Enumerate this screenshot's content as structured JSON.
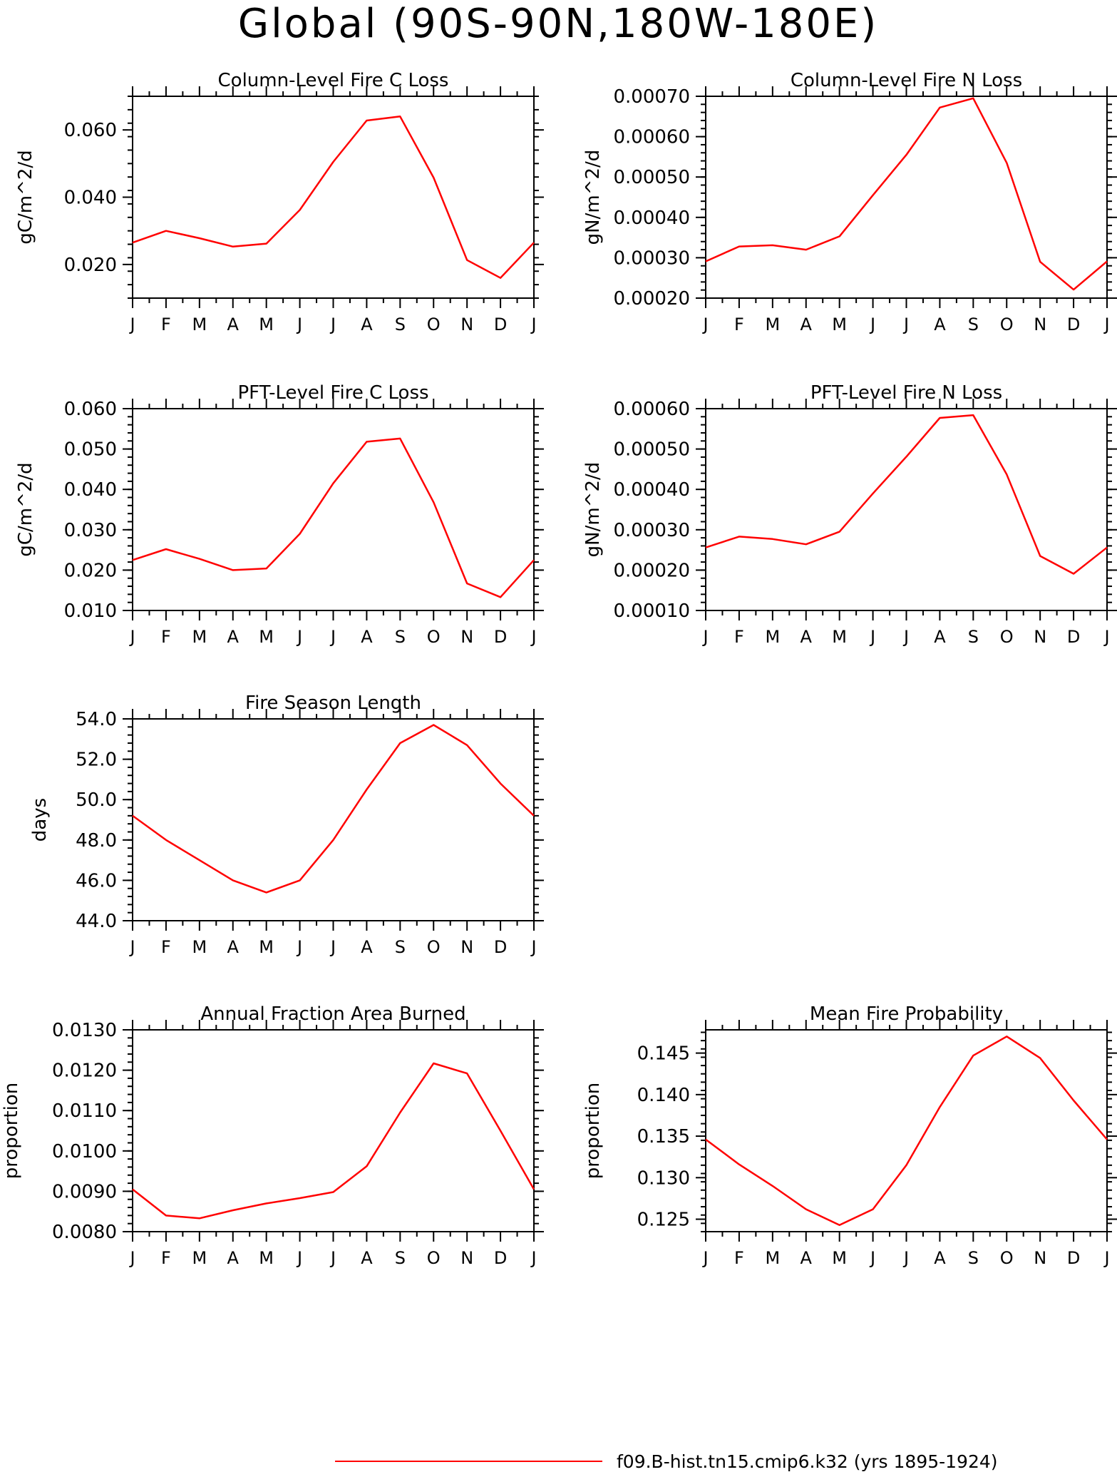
{
  "page": {
    "title": "Global (90S-90N,180W-180E)"
  },
  "legend": {
    "label": "f09.B-hist.tn15.cmip6.k32 (yrs 1895-1924)",
    "color": "#ff0000"
  },
  "months": [
    "J",
    "F",
    "M",
    "A",
    "M",
    "J",
    "J",
    "A",
    "S",
    "O",
    "N",
    "D",
    "J"
  ],
  "chart_data": [
    {
      "id": "col-fire-c",
      "type": "line",
      "title": "Column-Level Fire C Loss",
      "ylabel": "gC/m^2/d",
      "ylim": [
        0.01,
        0.07
      ],
      "yticks": [
        0.02,
        0.04,
        0.06
      ],
      "ytick_labels": [
        "0.020",
        "0.040",
        "0.060"
      ],
      "values": [
        0.0265,
        0.03,
        0.0278,
        0.0253,
        0.0262,
        0.0362,
        0.0505,
        0.0628,
        0.064,
        0.0458,
        0.0213,
        0.016,
        0.0265
      ]
    },
    {
      "id": "col-fire-n",
      "type": "line",
      "title": "Column-Level Fire N Loss",
      "ylabel": "gN/m^2/d",
      "ylim": [
        0.0002,
        0.0007
      ],
      "yticks": [
        0.0002,
        0.0003,
        0.0004,
        0.0005,
        0.0006,
        0.0007
      ],
      "ytick_labels": [
        "0.00020",
        "0.00030",
        "0.00040",
        "0.00050",
        "0.00060",
        "0.00070"
      ],
      "values": [
        0.000291,
        0.000328,
        0.000331,
        0.00032,
        0.000353,
        0.000455,
        0.000555,
        0.000672,
        0.000695,
        0.000535,
        0.00029,
        0.000221,
        0.000291
      ]
    },
    {
      "id": "pft-fire-c",
      "type": "line",
      "title": "PFT-Level Fire C Loss",
      "ylabel": "gC/m^2/d",
      "ylim": [
        0.01,
        0.06
      ],
      "yticks": [
        0.01,
        0.02,
        0.03,
        0.04,
        0.05,
        0.06
      ],
      "ytick_labels": [
        "0.010",
        "0.020",
        "0.030",
        "0.040",
        "0.050",
        "0.060"
      ],
      "values": [
        0.0225,
        0.0252,
        0.0228,
        0.02,
        0.0204,
        0.029,
        0.0415,
        0.0518,
        0.0526,
        0.0368,
        0.0167,
        0.0133,
        0.0225
      ]
    },
    {
      "id": "pft-fire-n",
      "type": "line",
      "title": "PFT-Level Fire N Loss",
      "ylabel": "gN/m^2/d",
      "ylim": [
        0.0001,
        0.0006
      ],
      "yticks": [
        0.0001,
        0.0002,
        0.0003,
        0.0004,
        0.0005,
        0.0006
      ],
      "ytick_labels": [
        "0.00010",
        "0.00020",
        "0.00030",
        "0.00040",
        "0.00050",
        "0.00060"
      ],
      "values": [
        0.000256,
        0.000283,
        0.000277,
        0.000264,
        0.000295,
        0.00039,
        0.000481,
        0.000577,
        0.000584,
        0.000437,
        0.000235,
        0.000191,
        0.000256
      ]
    },
    {
      "id": "fire-season",
      "type": "line",
      "title": "Fire Season Length",
      "ylabel": "days",
      "ylim": [
        44.0,
        54.0
      ],
      "yticks": [
        44.0,
        46.0,
        48.0,
        50.0,
        52.0,
        54.0
      ],
      "ytick_labels": [
        "44.0",
        "46.0",
        "48.0",
        "50.0",
        "52.0",
        "54.0"
      ],
      "values": [
        49.2,
        48.0,
        47.0,
        46.0,
        45.4,
        46.0,
        48.0,
        50.5,
        52.8,
        53.7,
        52.7,
        50.8,
        49.2
      ]
    },
    {
      "id": "area-burned",
      "type": "line",
      "title": "Annual Fraction Area Burned",
      "ylabel": "proportion",
      "ylim": [
        0.008,
        0.013
      ],
      "yticks": [
        0.008,
        0.009,
        0.01,
        0.011,
        0.012,
        0.013
      ],
      "ytick_labels": [
        "0.0080",
        "0.0090",
        "0.0100",
        "0.0110",
        "0.0120",
        "0.0130"
      ],
      "values": [
        0.00905,
        0.0084,
        0.00833,
        0.00853,
        0.0087,
        0.00883,
        0.00898,
        0.00962,
        0.01095,
        0.01217,
        0.01192,
        0.0105,
        0.00905
      ]
    },
    {
      "id": "fire-prob",
      "type": "line",
      "title": "Mean Fire Probability",
      "ylabel": "proportion",
      "ylim": [
        0.1235,
        0.1478
      ],
      "yticks": [
        0.125,
        0.13,
        0.135,
        0.14,
        0.145
      ],
      "ytick_labels": [
        "0.125",
        "0.130",
        "0.135",
        "0.140",
        "0.145"
      ],
      "values": [
        0.1346,
        0.1316,
        0.129,
        0.1262,
        0.1243,
        0.1262,
        0.1315,
        0.1385,
        0.1447,
        0.147,
        0.1444,
        0.1393,
        0.1346
      ]
    }
  ]
}
